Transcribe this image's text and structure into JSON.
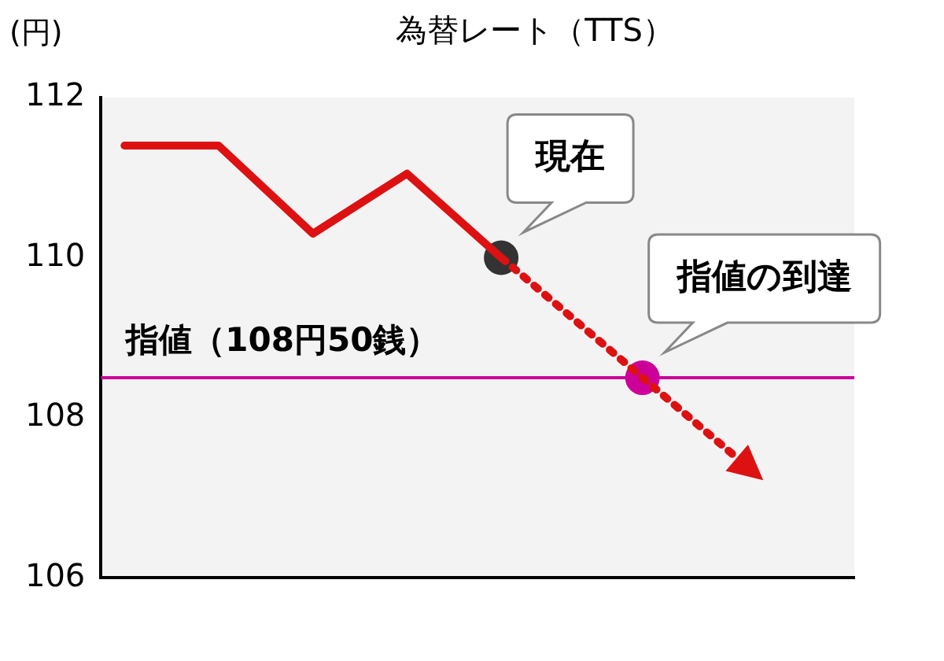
{
  "chart_data": {
    "type": "line",
    "title": "為替レート（TTS）",
    "ylabel": "(円)",
    "categories": [
      null,
      null,
      null,
      null,
      null,
      null,
      null,
      null,
      null,
      null,
      null,
      null,
      null,
      null,
      null,
      null
    ],
    "series": [
      {
        "color": "#dd1111",
        "line_style": "solid",
        "values": [
          111.4,
          null,
          111.4,
          null,
          110.3,
          null,
          111.05,
          null,
          110,
          null,
          null,
          null,
          null,
          null,
          null,
          null
        ]
      },
      {
        "type": "scatter",
        "marker": "circle",
        "colors": [
          null,
          null,
          null,
          null,
          null,
          null,
          null,
          null,
          "#333333",
          null,
          null,
          "#cc0099",
          null,
          null,
          null,
          null
        ],
        "values": [
          null,
          null,
          null,
          null,
          null,
          null,
          null,
          null,
          110,
          null,
          null,
          108.5,
          null,
          null,
          null,
          null
        ]
      }
    ],
    "ylim": [
      106,
      112
    ],
    "yticks": [
      106,
      108,
      110,
      112
    ],
    "grid": false,
    "legend": false,
    "ref_lines": [
      {
        "axis": "y",
        "value": 108.5,
        "label": "指値（108円50銭）",
        "color": "#cc0099"
      }
    ],
    "annotations": [
      "現在",
      "指値の到達"
    ]
  }
}
